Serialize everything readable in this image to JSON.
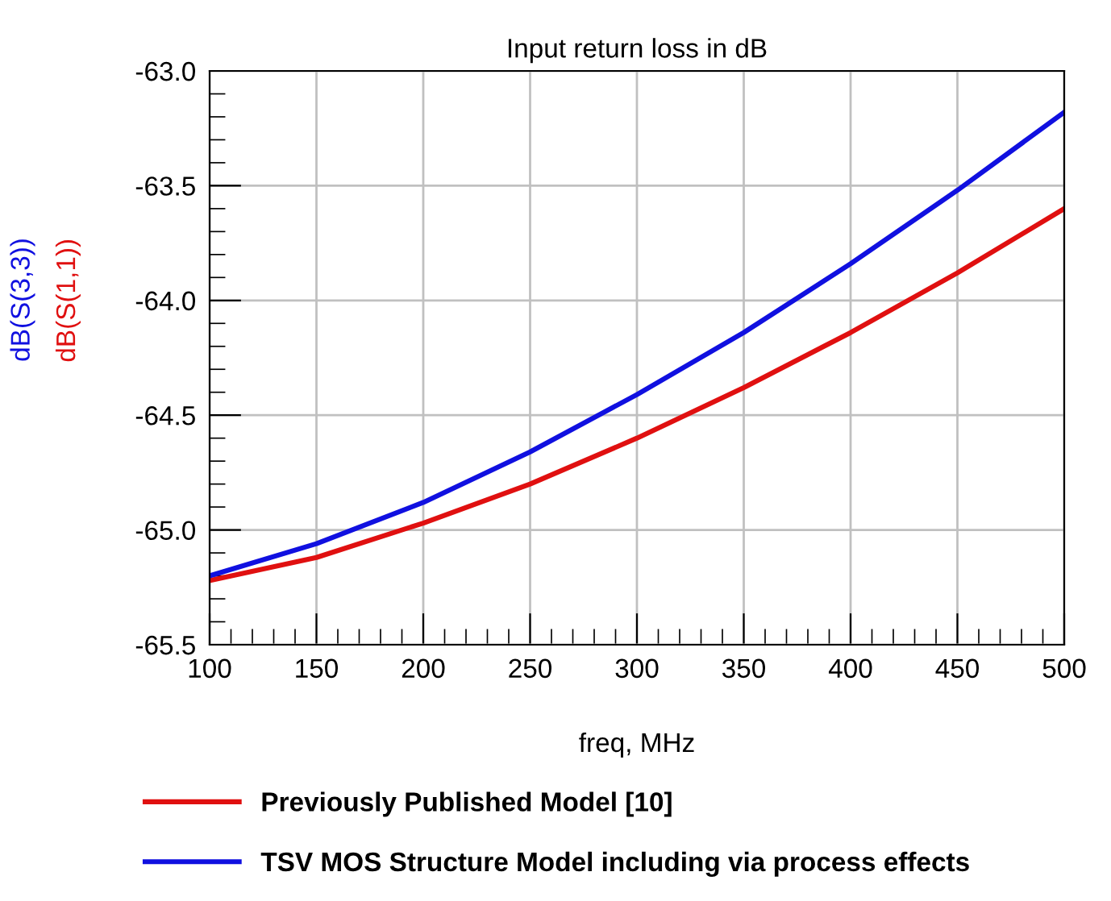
{
  "chart_data": {
    "type": "line",
    "title": "Input return loss in dB",
    "xlabel": "freq, MHz",
    "ylabel": "dB(S(1,1))",
    "annotations": [
      "dB(S(3,3))"
    ],
    "x": [
      100,
      150,
      200,
      250,
      300,
      350,
      400,
      450,
      500
    ],
    "series": [
      {
        "name": "Previously Published Model [10]",
        "color": "#e01010",
        "values": [
          -65.22,
          -65.12,
          -64.97,
          -64.8,
          -64.6,
          -64.38,
          -64.14,
          -63.88,
          -63.6
        ]
      },
      {
        "name": "TSV MOS Structure Model including via process effects",
        "color": "#1010e0",
        "values": [
          -65.2,
          -65.06,
          -64.88,
          -64.66,
          -64.41,
          -64.14,
          -63.84,
          -63.52,
          -63.18
        ]
      }
    ],
    "xlim": [
      100,
      500
    ],
    "xticks": [
      100,
      150,
      200,
      250,
      300,
      350,
      400,
      450,
      500
    ],
    "ylim": [
      -65.5,
      -63.0
    ],
    "yticks": [
      {
        "value": -65.5,
        "label": "-65.5"
      },
      {
        "value": -65.0,
        "label": "-65.0"
      },
      {
        "value": -64.5,
        "label": "-64.5"
      },
      {
        "value": -64.0,
        "label": "-64.0"
      },
      {
        "value": -63.5,
        "label": "-63.5"
      },
      {
        "value": -63.0,
        "label": "-63.0"
      }
    ],
    "grid": true,
    "legend": "bottom",
    "marker": "none",
    "line_style": "solid"
  }
}
